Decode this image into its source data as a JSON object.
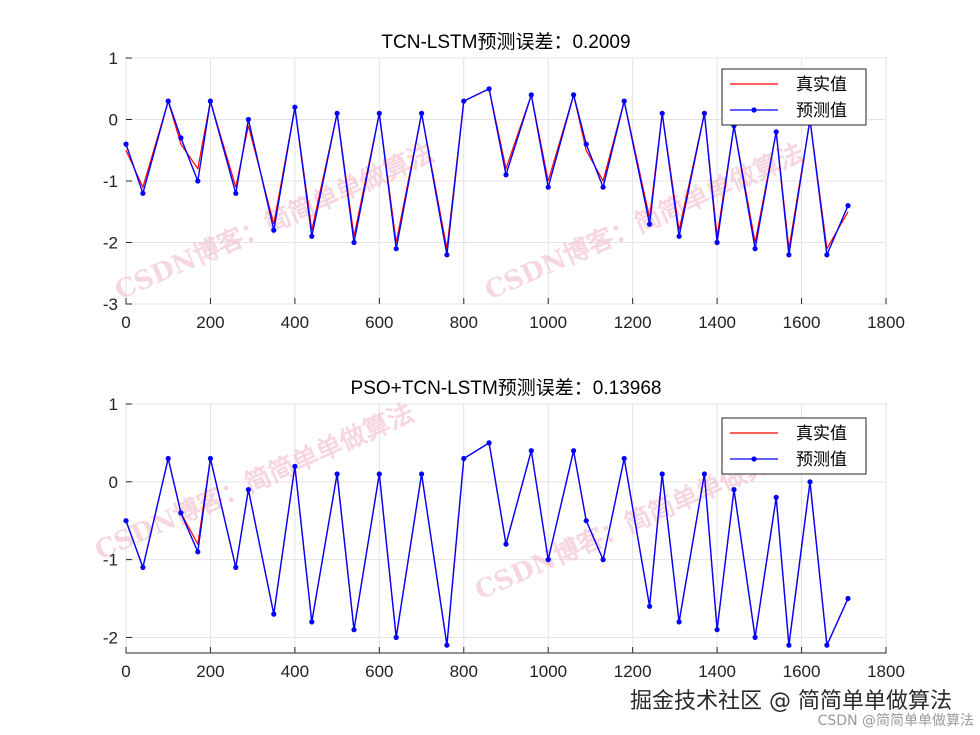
{
  "chart_data": [
    {
      "type": "line",
      "title": "TCN-LSTM预测误差：0.2009",
      "xlabel": "",
      "ylabel": "",
      "xlim": [
        0,
        1800
      ],
      "ylim": [
        -3,
        1
      ],
      "xticks": [
        0,
        200,
        400,
        600,
        800,
        1000,
        1200,
        1400,
        1600,
        1800
      ],
      "yticks": [
        1,
        0,
        -1,
        -2,
        -3
      ],
      "grid": true,
      "legend_position": "top-right",
      "series": [
        {
          "name": "真实值",
          "color": "#ff0000",
          "marker": "none",
          "x": [
            0,
            40,
            100,
            130,
            170,
            200,
            260,
            290,
            350,
            400,
            440,
            500,
            540,
            600,
            640,
            700,
            760,
            800,
            860,
            900,
            960,
            1000,
            1060,
            1090,
            1130,
            1180,
            1240,
            1270,
            1310,
            1370,
            1400,
            1440,
            1490,
            1540,
            1570,
            1620,
            1660,
            1710
          ],
          "values": [
            -0.5,
            -1.1,
            0.3,
            -0.4,
            -0.8,
            0.3,
            -1.1,
            -0.1,
            -1.7,
            0.2,
            -1.8,
            0.1,
            -1.9,
            0.1,
            -2.0,
            0.1,
            -2.1,
            0.3,
            0.5,
            -0.8,
            0.4,
            -1.0,
            0.4,
            -0.5,
            -1.0,
            0.3,
            -1.6,
            0.1,
            -1.8,
            0.1,
            -1.9,
            -0.1,
            -2.0,
            -0.2,
            -2.1,
            0.0,
            -2.1,
            -1.5
          ]
        },
        {
          "name": "预测值",
          "color": "#0000ff",
          "marker": "dot",
          "x": [
            0,
            40,
            100,
            130,
            170,
            200,
            260,
            290,
            350,
            400,
            440,
            500,
            540,
            600,
            640,
            700,
            760,
            800,
            860,
            900,
            960,
            1000,
            1060,
            1090,
            1130,
            1180,
            1240,
            1270,
            1310,
            1370,
            1400,
            1440,
            1490,
            1540,
            1570,
            1620,
            1660,
            1710
          ],
          "values": [
            -0.4,
            -1.2,
            0.3,
            -0.3,
            -1.0,
            0.3,
            -1.2,
            0.0,
            -1.8,
            0.2,
            -1.9,
            0.1,
            -2.0,
            0.1,
            -2.1,
            0.1,
            -2.2,
            0.3,
            0.5,
            -0.9,
            0.4,
            -1.1,
            0.4,
            -0.4,
            -1.1,
            0.3,
            -1.7,
            0.1,
            -1.9,
            0.1,
            -2.0,
            -0.1,
            -2.1,
            -0.2,
            -2.2,
            0.0,
            -2.2,
            -1.4
          ]
        }
      ]
    },
    {
      "type": "line",
      "title": "PSO+TCN-LSTM预测误差：0.13968",
      "xlabel": "",
      "ylabel": "",
      "xlim": [
        0,
        1800
      ],
      "ylim": [
        -2.2,
        1
      ],
      "xticks": [
        0,
        200,
        400,
        600,
        800,
        1000,
        1200,
        1400,
        1600,
        1800
      ],
      "yticks": [
        1,
        0,
        -1,
        -2
      ],
      "grid": true,
      "legend_position": "top-right",
      "series": [
        {
          "name": "真实值",
          "color": "#ff0000",
          "marker": "none",
          "x": [
            0,
            40,
            100,
            130,
            170,
            200,
            260,
            290,
            350,
            400,
            440,
            500,
            540,
            600,
            640,
            700,
            760,
            800,
            860,
            900,
            960,
            1000,
            1060,
            1090,
            1130,
            1180,
            1240,
            1270,
            1310,
            1370,
            1400,
            1440,
            1490,
            1540,
            1570,
            1620,
            1660,
            1710
          ],
          "values": [
            -0.5,
            -1.1,
            0.3,
            -0.4,
            -0.8,
            0.3,
            -1.1,
            -0.1,
            -1.7,
            0.2,
            -1.8,
            0.1,
            -1.9,
            0.1,
            -2.0,
            0.1,
            -2.1,
            0.3,
            0.5,
            -0.8,
            0.4,
            -1.0,
            0.4,
            -0.5,
            -1.0,
            0.3,
            -1.6,
            0.1,
            -1.8,
            0.1,
            -1.9,
            -0.1,
            -2.0,
            -0.2,
            -2.1,
            0.0,
            -2.1,
            -1.5
          ]
        },
        {
          "name": "预测值",
          "color": "#0000ff",
          "marker": "dot",
          "x": [
            0,
            40,
            100,
            130,
            170,
            200,
            260,
            290,
            350,
            400,
            440,
            500,
            540,
            600,
            640,
            700,
            760,
            800,
            860,
            900,
            960,
            1000,
            1060,
            1090,
            1130,
            1180,
            1240,
            1270,
            1310,
            1370,
            1400,
            1440,
            1490,
            1540,
            1570,
            1620,
            1660,
            1710
          ],
          "values": [
            -0.5,
            -1.1,
            0.3,
            -0.4,
            -0.9,
            0.3,
            -1.1,
            -0.1,
            -1.7,
            0.2,
            -1.8,
            0.1,
            -1.9,
            0.1,
            -2.0,
            0.1,
            -2.1,
            0.3,
            0.5,
            -0.8,
            0.4,
            -1.0,
            0.4,
            -0.5,
            -1.0,
            0.3,
            -1.6,
            0.1,
            -1.8,
            0.1,
            -1.9,
            -0.1,
            -2.0,
            -0.2,
            -2.1,
            0.0,
            -2.1,
            -1.5
          ]
        }
      ]
    }
  ],
  "watermark": "CSDN博客：简简单单做算法",
  "footer": {
    "text": "掘金技术社区 @ 简简单单做算法",
    "subtext": "CSDN @简简单单做算法"
  }
}
